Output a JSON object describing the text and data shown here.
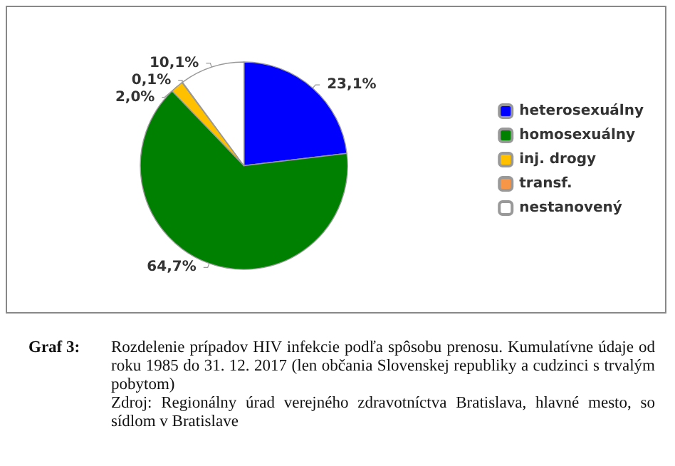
{
  "chart_data": {
    "type": "pie",
    "title": "Graf 3:",
    "subtitle": "Rozdelenie prípadov HIV infekcie podľa spôsobu prenosu. Kumulatívne údaje od roku 1985 do 31. 12. 2017 (len občania Slovenskej republiky a cudzinci s trvalým pobytom)",
    "annotations": [
      "Zdroj: Regionálny úrad verejného zdravotníctva Bratislava, hlavné mesto, so sídlom v Bratislave"
    ],
    "categories": [
      "heterosexuálny",
      "homosexuálny",
      "inj. drogy",
      "transf.",
      "nestanovený"
    ],
    "values": [
      23.1,
      64.7,
      2.0,
      0.1,
      10.1
    ],
    "value_labels": [
      "23,1%",
      "64,7%",
      "2,0%",
      "0,1%",
      "10,1%"
    ],
    "colors": [
      "#0000ff",
      "#008000",
      "#ffc000",
      "#f79646",
      "#ffffff"
    ],
    "legend": "right"
  }
}
